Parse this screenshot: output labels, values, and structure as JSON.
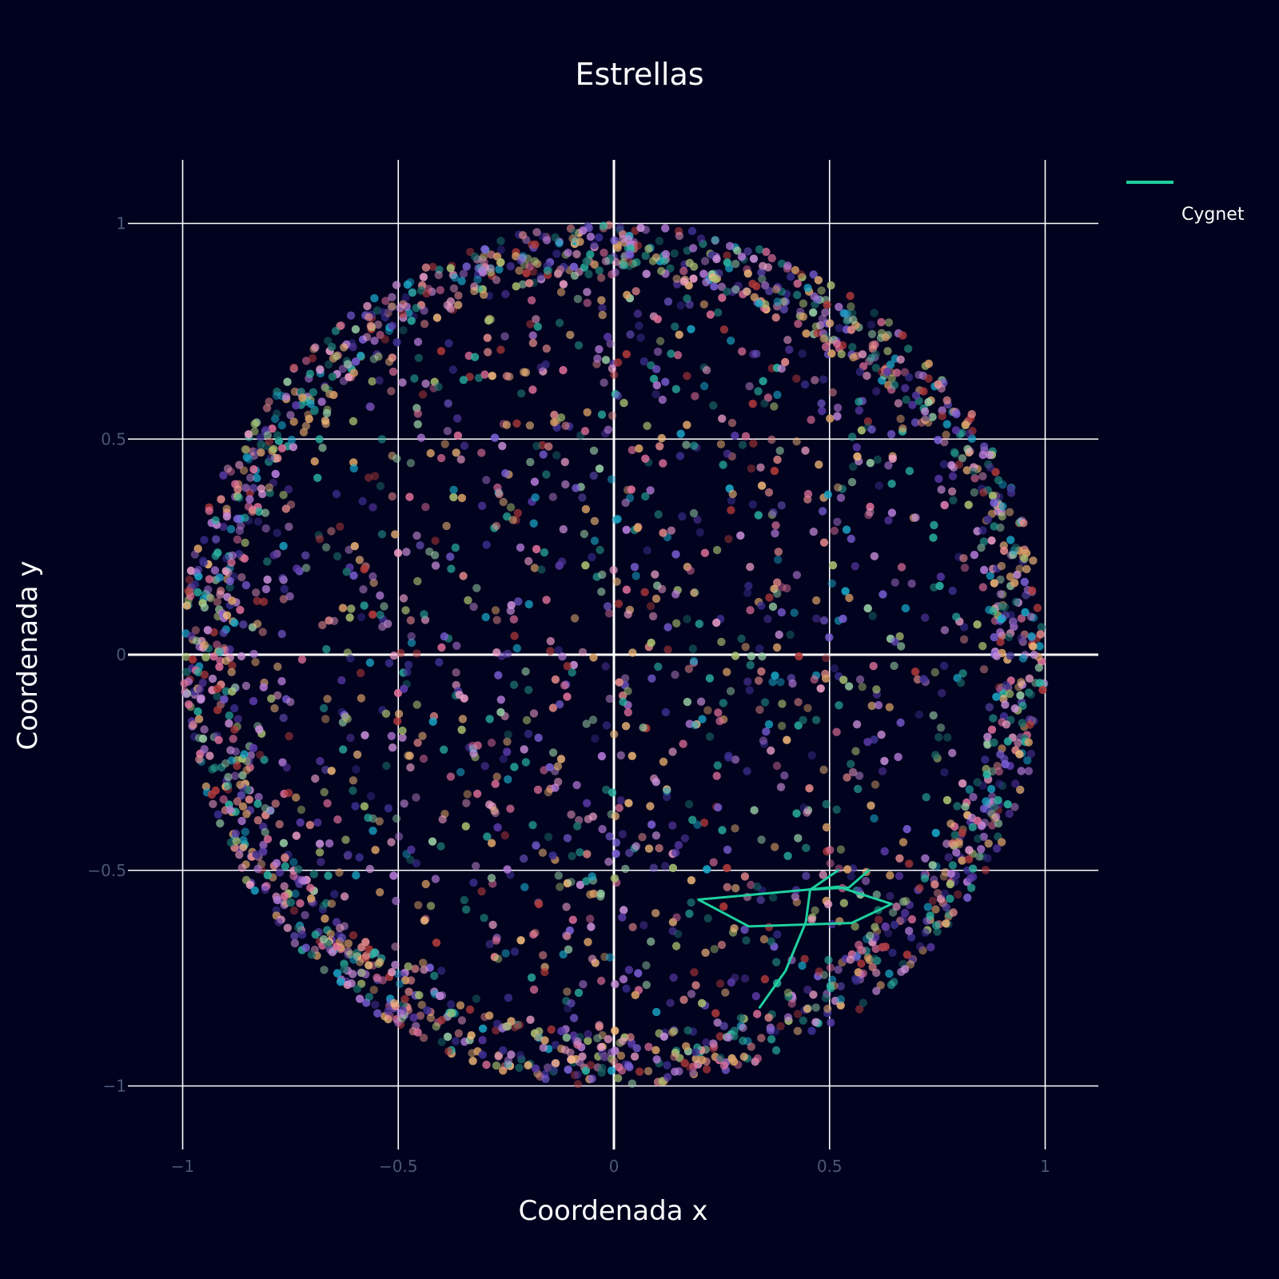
{
  "chart_data": {
    "type": "scatter",
    "title": "Estrellas",
    "xlabel": "Coordenada x",
    "ylabel": "Coordenada y",
    "xlim": [
      -1.13,
      1.13
    ],
    "ylim": [
      -1.13,
      1.13
    ],
    "xticks": [
      -1,
      -0.5,
      0,
      0.5,
      1
    ],
    "yticks": [
      -1,
      -0.5,
      0,
      0.5,
      1
    ],
    "xtick_labels": [
      "−1",
      "−0.5",
      "0",
      "0.5",
      "1"
    ],
    "ytick_labels": [
      "−1",
      "−0.5",
      "0",
      "0.5",
      "1"
    ],
    "grid": true,
    "zero_lines": true,
    "background": "#00021e",
    "grid_color": "#ffffff",
    "legend_position": "top-right",
    "stars": {
      "description_of_distribution": "several thousand semi-transparent star markers filling the unit disk, denser near the rim",
      "count": 3000,
      "radius_range": [
        0,
        1
      ],
      "colors": [
        "#b57bd9",
        "#e58a8a",
        "#f2b97a",
        "#2ab3a0",
        "#1aa6c7",
        "#7b5fd6",
        "#d9a066",
        "#9ad0a6",
        "#e0709a",
        "#5a3aa8",
        "#c98fd8",
        "#a8c070",
        "#3b2f8f",
        "#1b6f6a",
        "#b03a3a",
        "#f0a0c8"
      ]
    },
    "series": [
      {
        "name": "Cygnet",
        "type": "line",
        "color": "#1fcf9f",
        "segments": [
          [
            [
              0.196,
              -0.568
            ],
            [
              0.313,
              -0.63
            ],
            [
              0.551,
              -0.622
            ],
            [
              0.644,
              -0.578
            ],
            [
              0.52,
              -0.538
            ],
            [
              0.448,
              -0.545
            ],
            [
              0.196,
              -0.568
            ]
          ],
          [
            [
              0.338,
              -0.818
            ],
            [
              0.398,
              -0.733
            ],
            [
              0.445,
              -0.62
            ],
            [
              0.455,
              -0.545
            ],
            [
              0.52,
              -0.5
            ]
          ],
          [
            [
              0.45,
              -0.545
            ],
            [
              0.545,
              -0.54
            ],
            [
              0.591,
              -0.5
            ]
          ]
        ]
      }
    ]
  }
}
